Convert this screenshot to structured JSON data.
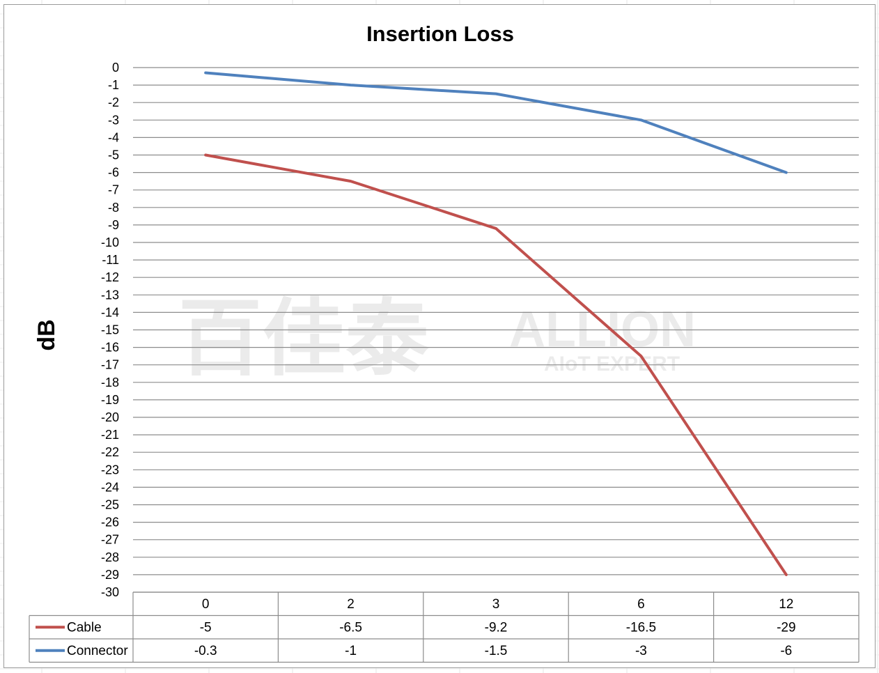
{
  "chart_data": {
    "type": "line",
    "title": "Insertion Loss",
    "ylabel": "dB",
    "xlabel": "",
    "categories": [
      "0",
      "2",
      "3",
      "6",
      "12"
    ],
    "ylim": [
      -30,
      0
    ],
    "ytick_step": 1,
    "grid": true,
    "legend": "data-table-left",
    "series": [
      {
        "name": "Cable",
        "color": "#c0504d",
        "values": [
          -5,
          -6.5,
          -9.2,
          -16.5,
          -29
        ]
      },
      {
        "name": "Connector",
        "color": "#4f81bd",
        "values": [
          -0.3,
          -1,
          -1.5,
          -3,
          -6
        ]
      }
    ],
    "table_labels": {
      "Cable": [
        "-5",
        "-6.5",
        "-9.2",
        "-16.5",
        "-29"
      ],
      "Connector": [
        "-0.3",
        "-1",
        "-1.5",
        "-3",
        "-6"
      ]
    }
  },
  "watermark": {
    "brand_cn": "百佳泰",
    "brand_en": "ALLION",
    "tagline": "AIoT EXPERT"
  }
}
